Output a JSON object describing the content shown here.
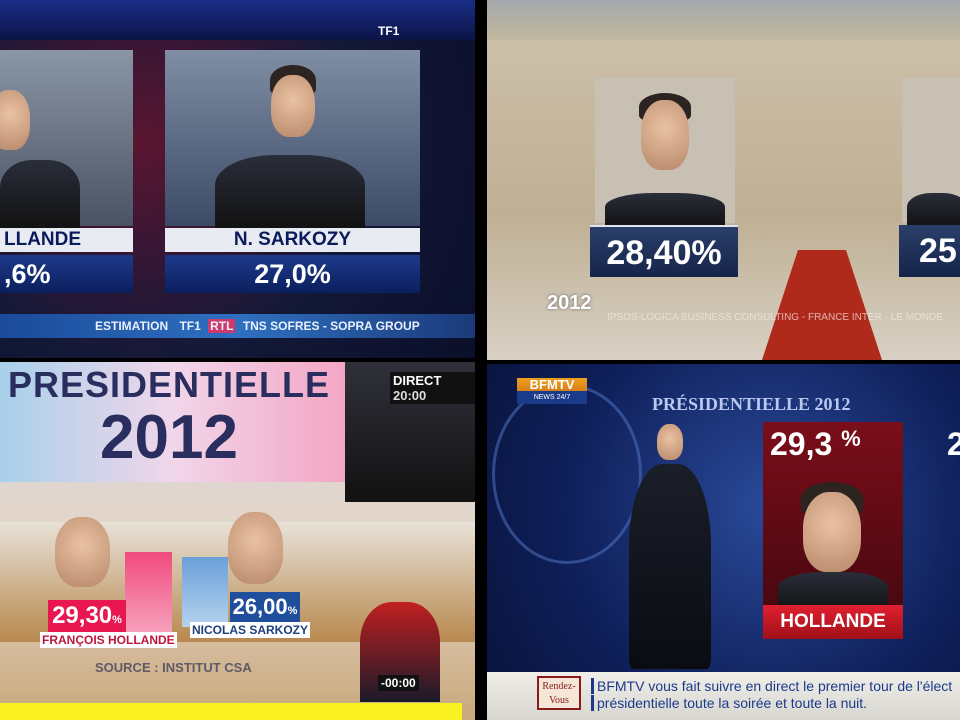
{
  "tf1": {
    "logo": "TF1",
    "candidates": [
      {
        "name": "LLANDE",
        "percent": ",6%"
      },
      {
        "name": "N. SARKOZY",
        "percent": "27,0%"
      }
    ],
    "source": {
      "label": "ESTIMATION",
      "logos": [
        "TF1",
        "RTL"
      ],
      "institute": "TNS SOFRES - SOPRA GROUP"
    }
  },
  "france2": {
    "year": "2012",
    "candidates": [
      {
        "percent": "28,40%"
      },
      {
        "percent": "25"
      }
    ],
    "source": "IPSOS-LOGICA BUSINESS CONSULTING - FRANCE INTER - LE MONDE"
  },
  "france3": {
    "title": "PRESIDENTIELLE",
    "year": "2012",
    "live": "DIRECT",
    "time": "20:00",
    "candidates": [
      {
        "name": "FRANÇOIS HOLLANDE",
        "percent": "29,30",
        "unit": "%",
        "color": "#e8174f"
      },
      {
        "name": "NICOLAS SARKOZY",
        "percent": "26,00",
        "unit": "%",
        "color": "#1f4f9c"
      }
    ],
    "source": "SOURCE : INSTITUT CSA",
    "countdown": "-00:00"
  },
  "bfmtv": {
    "logo": "BFMTV",
    "logo_sub": "NEWS 24/7",
    "title": "PRÉSIDENTIELLE 2012",
    "candidate": {
      "name": "HOLLANDE",
      "percent": "29,3",
      "unit": "%"
    },
    "next_percent": "2",
    "ticker_icon": "Rendez-Vous",
    "ticker_lines": [
      "BFMTV vous fait suivre en direct le premier tour de l'élect",
      "présidentielle toute la soirée et toute la nuit."
    ]
  }
}
